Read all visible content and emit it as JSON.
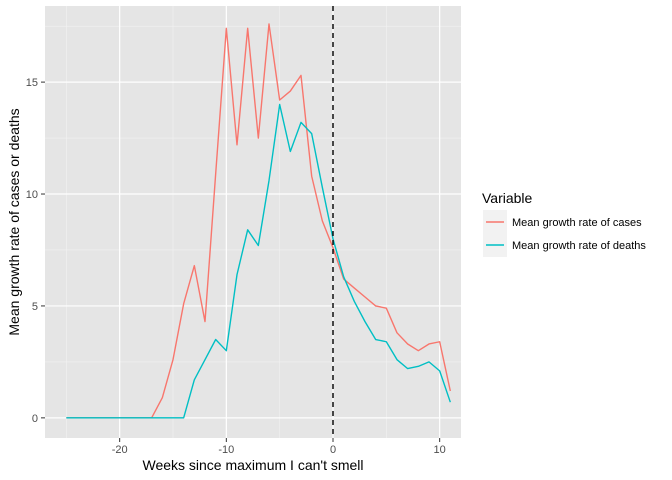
{
  "chart_data": {
    "type": "line",
    "title": "",
    "xlabel": "Weeks since maximum I can't smell",
    "ylabel": "Mean growth rate of cases or deaths",
    "xlim": [
      -27,
      12
    ],
    "ylim": [
      -0.9,
      18.4
    ],
    "xticks": [
      -20,
      -10,
      0,
      10
    ],
    "yticks": [
      0,
      5,
      10,
      15
    ],
    "x_tick_labels": [
      "-20",
      "-10",
      "0",
      "10"
    ],
    "y_tick_labels": [
      "0",
      "5",
      "10",
      "15"
    ],
    "grid": true,
    "background": "#e5e5e5",
    "vline": {
      "x": 0,
      "style": "dashed",
      "color": "#000000"
    },
    "legend": {
      "title": "Variable",
      "position": "right",
      "entries": [
        "Mean growth rate of cases",
        "Mean growth rate of deaths"
      ]
    },
    "x": [
      -25,
      -24,
      -23,
      -22,
      -21,
      -20,
      -19,
      -18,
      -17,
      -16,
      -15,
      -14,
      -13,
      -12,
      -11,
      -10,
      -9,
      -8,
      -7,
      -6,
      -5,
      -4,
      -3,
      -2,
      -1,
      0,
      1,
      2,
      3,
      4,
      5,
      6,
      7,
      8,
      9,
      10,
      11
    ],
    "series": [
      {
        "name": "Mean growth rate of cases",
        "color": "#F8766D",
        "values": [
          0,
          0,
          0,
          0,
          0,
          0,
          0,
          0,
          0,
          0.9,
          2.6,
          5.1,
          6.8,
          4.3,
          10.9,
          17.4,
          12.2,
          17.4,
          12.5,
          17.6,
          14.2,
          14.6,
          15.3,
          10.8,
          8.8,
          7.6,
          6.2,
          5.8,
          5.4,
          5.0,
          4.9,
          3.8,
          3.3,
          3.0,
          3.3,
          3.4,
          1.2
        ]
      },
      {
        "name": "Mean growth rate of deaths",
        "color": "#00BFC4",
        "values": [
          0,
          0,
          0,
          0,
          0,
          0,
          0,
          0,
          0,
          0,
          0,
          0,
          1.7,
          2.6,
          3.5,
          3.0,
          6.4,
          8.4,
          7.7,
          10.6,
          14.0,
          11.9,
          13.2,
          12.7,
          10.3,
          8.0,
          6.3,
          5.2,
          4.3,
          3.5,
          3.4,
          2.6,
          2.2,
          2.3,
          2.5,
          2.1,
          0.7
        ]
      }
    ]
  }
}
